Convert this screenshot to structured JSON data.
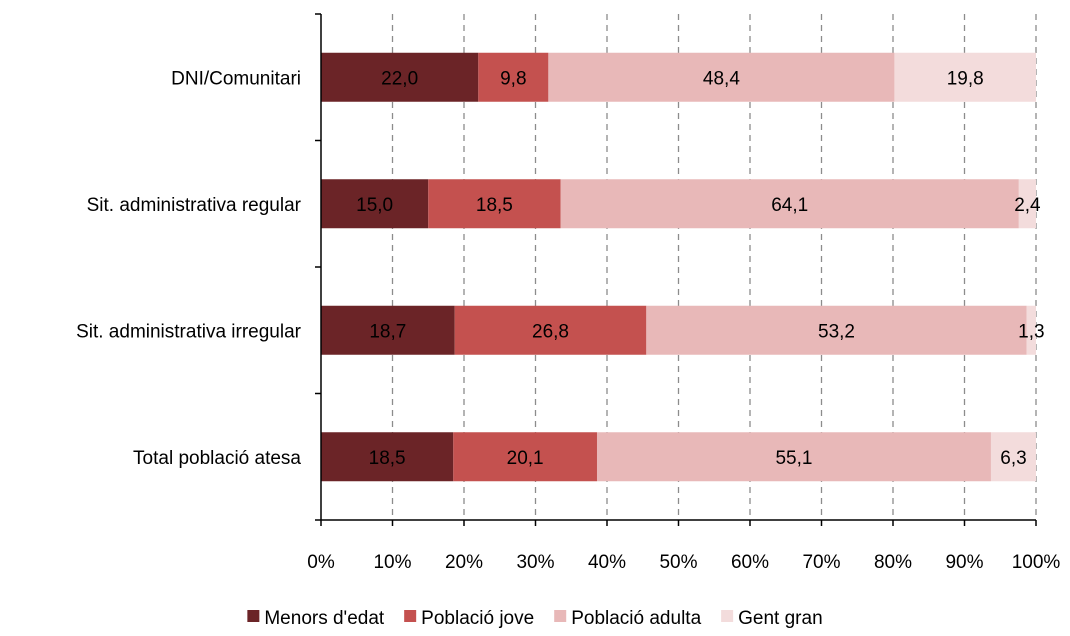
{
  "chart_data": {
    "type": "bar",
    "orientation": "horizontal",
    "stacked": true,
    "categories": [
      "DNI/Comunitari",
      "Sit. administrativa regular",
      "Sit. administrativa irregular",
      "Total població atesa"
    ],
    "series": [
      {
        "name": "Menors d'edat",
        "color": "#6b2427",
        "values": [
          22.0,
          15.0,
          18.7,
          18.5
        ],
        "labels": [
          "22,0",
          "15,0",
          "18,7",
          "18,5"
        ]
      },
      {
        "name": "Població jove",
        "color": "#c4514f",
        "values": [
          9.8,
          18.5,
          26.8,
          20.1
        ],
        "labels": [
          "9,8",
          "18,5",
          "26,8",
          "20,1"
        ]
      },
      {
        "name": "Població adulta",
        "color": "#e8b8b8",
        "values": [
          48.4,
          64.1,
          53.2,
          55.1
        ],
        "labels": [
          "48,4",
          "64,1",
          "53,2",
          "55,1"
        ]
      },
      {
        "name": "Gent gran",
        "color": "#f3dcdc",
        "values": [
          19.8,
          2.4,
          1.3,
          6.3
        ],
        "labels": [
          "19,8",
          "2,4",
          "1,3",
          "6,3"
        ]
      }
    ],
    "xlim": [
      0,
      100
    ],
    "x_ticks": [
      "0%",
      "10%",
      "20%",
      "30%",
      "40%",
      "50%",
      "60%",
      "70%",
      "80%",
      "90%",
      "100%"
    ],
    "grid": true,
    "legend_position": "bottom"
  }
}
